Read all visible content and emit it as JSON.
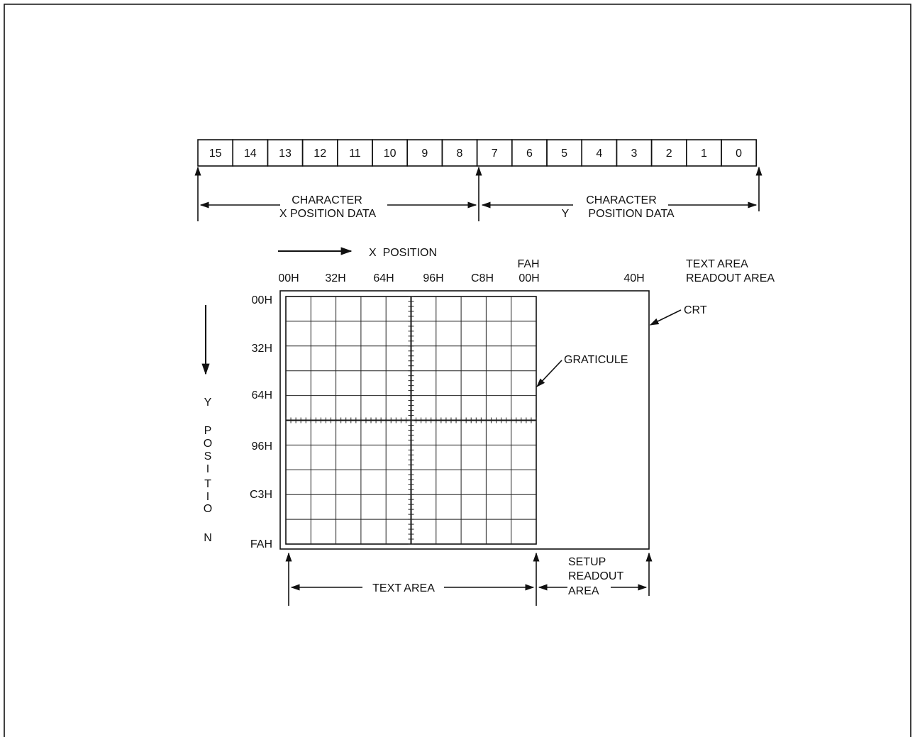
{
  "register": {
    "bits": [
      "15",
      "14",
      "13",
      "12",
      "11",
      "10",
      "9",
      "8",
      "7",
      "6",
      "5",
      "4",
      "3",
      "2",
      "1",
      "0"
    ],
    "x_field": {
      "line1": "CHARACTER",
      "line2": "X POSITION DATA"
    },
    "y_field": {
      "line1": "CHARACTER",
      "line2a": "Y",
      "line2b": "POSITION DATA"
    }
  },
  "x_axis": {
    "title": "X  POSITION",
    "ticks": [
      "00H",
      "32H",
      "64H",
      "96H",
      "C8H"
    ],
    "fah_top": "FAH",
    "fah_bottom": "00H",
    "readout_tick": "40H"
  },
  "y_axis": {
    "title_letters": [
      "Y",
      "P",
      "O",
      "S",
      "I",
      "T",
      "I",
      "O",
      "N"
    ],
    "ticks": [
      "00H",
      "32H",
      "64H",
      "96H",
      "C3H",
      "FAH"
    ]
  },
  "callouts": {
    "text_area_readout_line1": "TEXT AREA",
    "text_area_readout_line2": "READOUT AREA",
    "crt": "CRT",
    "graticule": "GRATICULE"
  },
  "bottom": {
    "text_area": "TEXT AREA",
    "setup_line1": "SETUP",
    "setup_line2": "READOUT",
    "setup_line3": "AREA"
  }
}
